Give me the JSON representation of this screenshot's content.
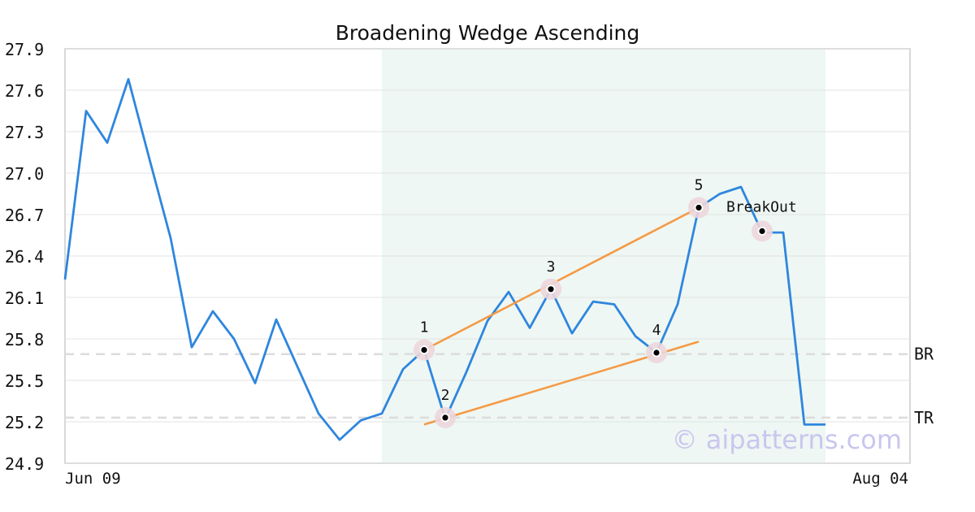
{
  "chart_data": {
    "type": "line",
    "title": "Broadening Wedge Ascending",
    "x_tick_labels": [
      "Jun 09",
      "Aug 04"
    ],
    "y_ticks": [
      "27.9",
      "27.6",
      "27.3",
      "27.0",
      "26.7",
      "26.4",
      "26.1",
      "25.8",
      "25.5",
      "25.2",
      "24.9"
    ],
    "ylim": [
      24.9,
      27.9
    ],
    "grid": "horizontal",
    "series": [
      {
        "color": "#2e86de",
        "values": [
          26.23,
          27.45,
          27.22,
          27.68,
          27.1,
          26.53,
          25.74,
          26.0,
          25.8,
          25.48,
          25.94,
          25.6,
          25.26,
          25.07,
          25.21,
          25.26,
          25.58,
          25.72,
          25.22,
          25.56,
          25.93,
          26.14,
          25.88,
          26.16,
          25.84,
          26.07,
          26.05,
          25.82,
          25.7,
          26.05,
          26.75,
          26.85,
          26.9,
          26.57,
          26.57,
          25.18,
          25.18
        ]
      }
    ],
    "highlight_range": {
      "from_index": 15,
      "to_index": 36,
      "color": "#eef7f3"
    },
    "reference_lines": [
      {
        "label": "BR",
        "value": 25.69
      },
      {
        "label": "TR",
        "value": 25.23
      }
    ],
    "trend_lines": [
      {
        "color": "#f59a45",
        "from": {
          "index": 17,
          "value": 25.72
        },
        "to": {
          "index": 30,
          "value": 26.75
        }
      },
      {
        "color": "#f59a45",
        "from": {
          "index": 17,
          "value": 25.18
        },
        "to": {
          "index": 30,
          "value": 25.78
        }
      }
    ],
    "points": [
      {
        "label": "1",
        "index": 17,
        "value": 25.72
      },
      {
        "label": "2",
        "index": 18,
        "value": 25.23
      },
      {
        "label": "3",
        "index": 23,
        "value": 26.16
      },
      {
        "label": "4",
        "index": 28,
        "value": 25.7
      },
      {
        "label": "5",
        "index": 30,
        "value": 26.75
      },
      {
        "label": "BreakOut",
        "index": 33,
        "value": 26.58
      }
    ],
    "watermark": "© aipatterns.com"
  }
}
